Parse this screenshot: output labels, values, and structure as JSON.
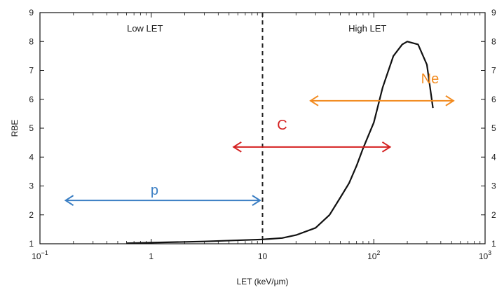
{
  "chart_data": {
    "type": "line",
    "xlabel": "LET (keV/µm)",
    "ylabel": "RBE",
    "xscale": "log",
    "xlim": [
      0.1,
      1000
    ],
    "ylim": [
      1,
      9
    ],
    "yticks": [
      "1",
      "2",
      "3",
      "4",
      "5",
      "6",
      "7",
      "8",
      "9"
    ],
    "xticks": [
      {
        "value": 0.1,
        "base": "10",
        "exp": "−1"
      },
      {
        "value": 1,
        "base": "1",
        "exp": ""
      },
      {
        "value": 10,
        "base": "10",
        "exp": ""
      },
      {
        "value": 100,
        "base": "10",
        "exp": "2"
      },
      {
        "value": 1000,
        "base": "10",
        "exp": "3"
      }
    ],
    "regions": [
      {
        "label": "Low LET",
        "x": 1
      },
      {
        "label": "High LET",
        "x": 100
      }
    ],
    "divider_x": 10,
    "series": [
      {
        "color": "#111111",
        "points": [
          [
            0.6,
            1.02
          ],
          [
            1,
            1.04
          ],
          [
            3,
            1.08
          ],
          [
            10,
            1.15
          ],
          [
            15,
            1.2
          ],
          [
            20,
            1.3
          ],
          [
            30,
            1.55
          ],
          [
            40,
            2.0
          ],
          [
            50,
            2.6
          ],
          [
            60,
            3.1
          ],
          [
            70,
            3.7
          ],
          [
            80,
            4.3
          ],
          [
            100,
            5.2
          ],
          [
            120,
            6.4
          ],
          [
            150,
            7.5
          ],
          [
            180,
            7.9
          ],
          [
            200,
            8.0
          ],
          [
            250,
            7.9
          ],
          [
            300,
            7.2
          ],
          [
            340,
            5.7
          ]
        ]
      }
    ],
    "annotations": [
      {
        "label": "p",
        "color": "#3b7fc4",
        "x_start": 0.17,
        "x_end": 9.5,
        "y": 2.5,
        "label_x": 1.07,
        "label_y": 2.7
      },
      {
        "label": "C",
        "color": "#d42020",
        "x_start": 5.5,
        "x_end": 140,
        "y": 4.35,
        "label_x": 15,
        "label_y": 4.95
      },
      {
        "label": "Ne",
        "color": "#f28a1e",
        "x_start": 27,
        "x_end": 520,
        "y": 5.95,
        "label_x": 320,
        "label_y": 6.55
      }
    ]
  }
}
